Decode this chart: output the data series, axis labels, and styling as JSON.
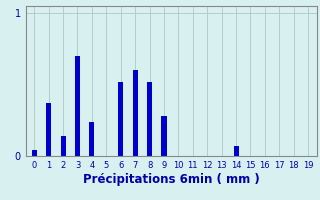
{
  "categories": [
    0,
    1,
    2,
    3,
    4,
    5,
    6,
    7,
    8,
    9,
    10,
    11,
    12,
    13,
    14,
    15,
    16,
    17,
    18,
    19
  ],
  "values": [
    0.04,
    0.37,
    0.14,
    0.7,
    0.24,
    0.0,
    0.52,
    0.6,
    0.52,
    0.28,
    0.0,
    0.0,
    0.0,
    0.0,
    0.07,
    0.0,
    0.0,
    0.0,
    0.0,
    0.0
  ],
  "bar_color": "#0000cc",
  "xlabel": "Précipitations 6min ( mm )",
  "ylim": [
    0,
    1.05
  ],
  "xlim": [
    -0.6,
    19.6
  ],
  "yticks": [
    0,
    1
  ],
  "xticks": [
    0,
    1,
    2,
    3,
    4,
    5,
    6,
    7,
    8,
    9,
    10,
    11,
    12,
    13,
    14,
    15,
    16,
    17,
    18,
    19
  ],
  "bg_color": "#d8f0f0",
  "grid_color": "#aec8c8",
  "bar_width": 0.35,
  "tick_fontsize": 6,
  "xlabel_fontsize": 8.5
}
